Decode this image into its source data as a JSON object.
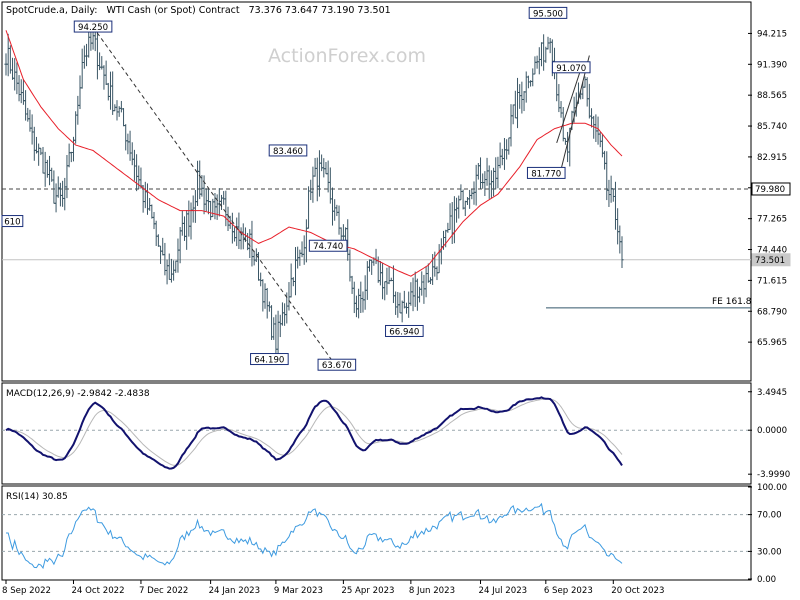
{
  "header": {
    "symbol": "SpotCrude.a, Daily:",
    "description": "WTI Cash (or Spot) Contract",
    "ohlc": "73.376 73.647 73.190 73.501"
  },
  "watermark": "ActionForex.com",
  "colors": {
    "bars": "#3a5665",
    "sma": "#e8202a",
    "macd": "#12126e",
    "signal": "#b8b8b8",
    "rsi": "#3e9be0",
    "grid": "#9aa7ad"
  },
  "chart_data": [
    {
      "type": "ohlc",
      "panel": "price",
      "ylim": [
        62.5,
        97.0
      ],
      "y_ticks": [
        "94.215",
        "91.390",
        "88.565",
        "85.740",
        "82.915",
        "80.090",
        "77.265",
        "74.440",
        "71.615",
        "68.790",
        "65.965"
      ],
      "x_ticks": [
        "8 Sep 2022",
        "24 Oct 2022",
        "7 Dec 2022",
        "24 Jan 2023",
        "9 Mar 2023",
        "25 Apr 2023",
        "8 Jun 2023",
        "24 Jul 2023",
        "6 Sep 2023",
        "20 Oct 2023"
      ],
      "close_anchors": [
        [
          0,
          92.5
        ],
        [
          6,
          89.0
        ],
        [
          12,
          84.5
        ],
        [
          18,
          82.0
        ],
        [
          22,
          79.5
        ],
        [
          26,
          78.8
        ],
        [
          32,
          86.0
        ],
        [
          35,
          92.0
        ],
        [
          40,
          93.5
        ],
        [
          44,
          91.0
        ],
        [
          48,
          88.5
        ],
        [
          52,
          87.0
        ],
        [
          56,
          84.5
        ],
        [
          62,
          80.0
        ],
        [
          68,
          76.5
        ],
        [
          72,
          73.0
        ],
        [
          76,
          72.0
        ],
        [
          80,
          75.5
        ],
        [
          84,
          77.5
        ],
        [
          88,
          80.5
        ],
        [
          92,
          79.0
        ],
        [
          96,
          77.5
        ],
        [
          100,
          78.5
        ],
        [
          104,
          77.0
        ],
        [
          108,
          75.5
        ],
        [
          112,
          75.0
        ],
        [
          116,
          72.5
        ],
        [
          120,
          69.0
        ],
        [
          124,
          66.0
        ],
        [
          128,
          69.0
        ],
        [
          132,
          72.5
        ],
        [
          136,
          74.0
        ],
        [
          140,
          80.5
        ],
        [
          144,
          81.5
        ],
        [
          148,
          80.0
        ],
        [
          152,
          77.0
        ],
        [
          156,
          75.5
        ],
        [
          160,
          69.0
        ],
        [
          164,
          70.5
        ],
        [
          168,
          73.0
        ],
        [
          172,
          72.0
        ],
        [
          176,
          71.0
        ],
        [
          180,
          69.5
        ],
        [
          184,
          69.0
        ],
        [
          188,
          71.0
        ],
        [
          192,
          71.5
        ],
        [
          196,
          72.5
        ],
        [
          200,
          74.0
        ],
        [
          204,
          76.5
        ],
        [
          208,
          78.5
        ],
        [
          212,
          80.0
        ],
        [
          216,
          81.0
        ],
        [
          220,
          81.5
        ],
        [
          224,
          80.5
        ],
        [
          228,
          83.0
        ],
        [
          232,
          86.0
        ],
        [
          236,
          88.5
        ],
        [
          240,
          90.5
        ],
        [
          244,
          91.5
        ],
        [
          248,
          93.0
        ],
        [
          250,
          94.5
        ],
        [
          252,
          91.0
        ],
        [
          254,
          88.0
        ],
        [
          256,
          84.0
        ],
        [
          258,
          83.5
        ],
        [
          260,
          86.0
        ],
        [
          262,
          87.5
        ],
        [
          264,
          89.0
        ],
        [
          266,
          90.0
        ],
        [
          268,
          86.5
        ],
        [
          270,
          85.5
        ],
        [
          272,
          84.5
        ],
        [
          274,
          82.5
        ],
        [
          276,
          80.0
        ],
        [
          278,
          79.0
        ],
        [
          280,
          77.5
        ],
        [
          281,
          77.0
        ],
        [
          282,
          75.5
        ],
        [
          283,
          73.5
        ]
      ],
      "sma_anchors": [
        [
          0,
          94.5
        ],
        [
          8,
          90.0
        ],
        [
          16,
          87.5
        ],
        [
          24,
          85.5
        ],
        [
          32,
          84.0
        ],
        [
          40,
          83.5
        ],
        [
          50,
          82.0
        ],
        [
          60,
          80.5
        ],
        [
          70,
          79.0
        ],
        [
          80,
          78.0
        ],
        [
          90,
          78.0
        ],
        [
          100,
          77.5
        ],
        [
          108,
          76.0
        ],
        [
          116,
          75.0
        ],
        [
          122,
          75.5
        ],
        [
          130,
          76.5
        ],
        [
          140,
          76.0
        ],
        [
          150,
          75.0
        ],
        [
          160,
          74.5
        ],
        [
          170,
          73.5
        ],
        [
          180,
          72.5
        ],
        [
          186,
          72.0
        ],
        [
          194,
          73.0
        ],
        [
          202,
          75.0
        ],
        [
          210,
          77.0
        ],
        [
          218,
          78.5
        ],
        [
          226,
          79.5
        ],
        [
          236,
          82.0
        ],
        [
          244,
          84.5
        ],
        [
          252,
          85.5
        ],
        [
          260,
          86.0
        ],
        [
          266,
          86.0
        ],
        [
          272,
          85.5
        ],
        [
          278,
          84.0
        ],
        [
          283,
          83.0
        ]
      ],
      "labels": [
        {
          "text": "94.250",
          "x": 40,
          "y": 94.25
        },
        {
          "text": "83.460",
          "x": 120,
          "y": 83.46
        },
        {
          "text": "64.190",
          "x": 121,
          "y": 64.19
        },
        {
          "text": "63.670",
          "x": 152,
          "y": 63.67
        },
        {
          "text": "74.740",
          "x": 148,
          "y": 74.74
        },
        {
          "text": "66.940",
          "x": 183,
          "y": 66.94
        },
        {
          "text": "95.500",
          "x": 249,
          "y": 95.5
        },
        {
          "text": "91.070",
          "x": 256,
          "y": 91.07
        },
        {
          "text": "81.770",
          "x": 255,
          "y": 81.77
        },
        {
          "text": "610",
          "x": 0,
          "y": 77.0
        }
      ],
      "level": {
        "value": 79.98,
        "label": "79.980"
      },
      "last_price": {
        "value": 73.501,
        "label": "73.501"
      },
      "fe_label": "FE 161.8",
      "fe_value": 69.1
    },
    {
      "type": "line",
      "panel": "macd",
      "title": "MACD(12,26,9) -2.9842 -2.4838",
      "ylim": [
        -4.8,
        4.2
      ],
      "y_ticks": [
        "3.4945",
        "0.0000",
        "-3.9990"
      ]
    },
    {
      "type": "line",
      "panel": "rsi",
      "title": "RSI(14) 30.85",
      "ylim": [
        0,
        100
      ],
      "y_ticks": [
        "100.00",
        "70.00",
        "30.00",
        "0.00"
      ]
    }
  ]
}
